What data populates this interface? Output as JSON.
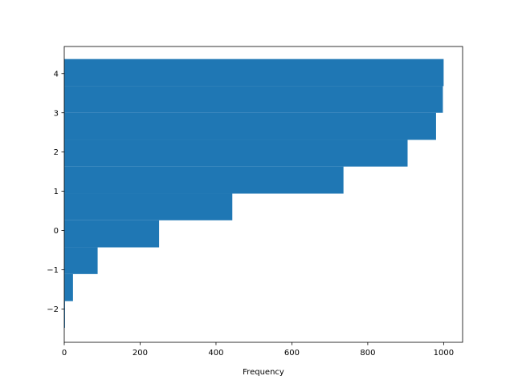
{
  "chart_data": {
    "type": "bar",
    "orientation": "horizontal",
    "cumulative": true,
    "title": "",
    "xlabel": "Frequency",
    "ylabel": "",
    "xlim": [
      0,
      1050
    ],
    "ylim": [
      -2.85,
      4.69
    ],
    "xticks": [
      0,
      200,
      400,
      600,
      800,
      1000
    ],
    "xtick_labels": [
      "0",
      "200",
      "400",
      "600",
      "800",
      "1000"
    ],
    "yticks": [
      -2,
      -1,
      0,
      1,
      2,
      3,
      4
    ],
    "ytick_labels": [
      "−2",
      "−1",
      "0",
      "1",
      "2",
      "3",
      "4"
    ],
    "bin_edges": [
      -2.48,
      -1.8,
      -1.11,
      -0.43,
      0.26,
      0.94,
      1.63,
      2.31,
      3.0,
      3.68,
      4.37
    ],
    "values": [
      2,
      23,
      88,
      250,
      443,
      736,
      905,
      980,
      998,
      1000
    ],
    "color": "#1f77b4",
    "grid": false,
    "legend": "none"
  }
}
